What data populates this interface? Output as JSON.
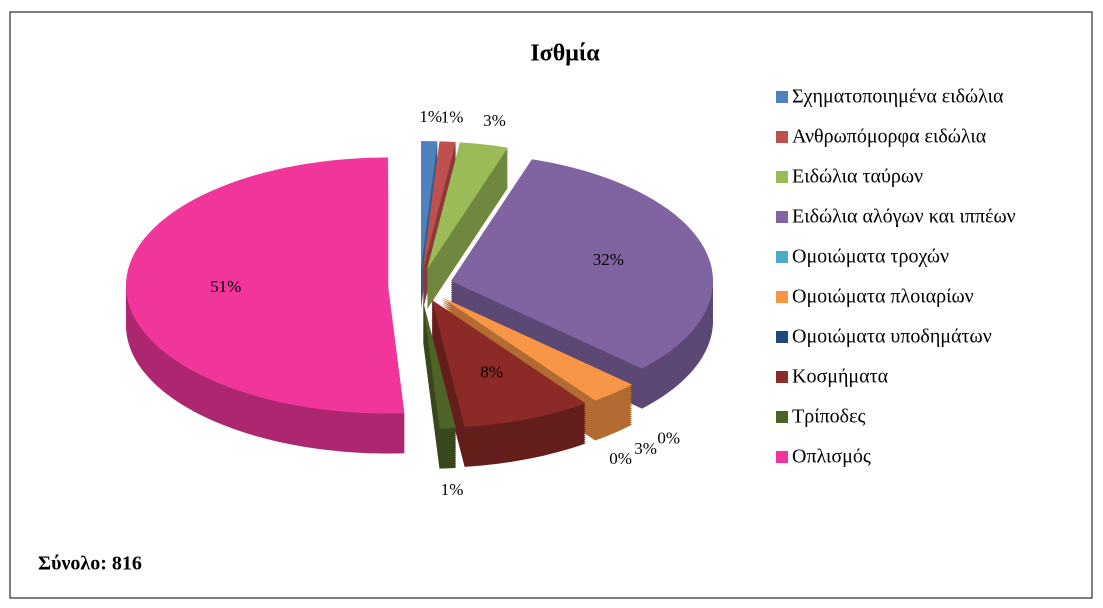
{
  "chart_data": {
    "type": "pie3d",
    "title": "Ισθμία",
    "categories": [
      "Σχηματοποιημένα ειδώλια",
      "Ανθρωπόμορφα ειδώλια",
      "Ειδώλια ταύρων",
      "Ειδώλια αλόγων και ιππέων",
      "Ομοιώματα τροχών",
      "Ομοιώματα πλοιαρίων",
      "Ομοιώματα υποδημάτων",
      "Κοσμήματα",
      "Τρίποδες",
      "Οπλισμός"
    ],
    "values": [
      1,
      1,
      3,
      32,
      0,
      3,
      0,
      8,
      1,
      51
    ],
    "value_labels": [
      "1%",
      "1%",
      "3%",
      "32%",
      "0%",
      "3%",
      "0%",
      "8%",
      "1%",
      "51%"
    ],
    "colors": [
      "#4f81bd",
      "#c0504d",
      "#9bbb59",
      "#8064a2",
      "#4bacc6",
      "#f79646",
      "#1f497d",
      "#8b2a26",
      "#4f6228",
      "#f0369b"
    ],
    "legend": "right",
    "footer": "Σύνολο: 816"
  }
}
